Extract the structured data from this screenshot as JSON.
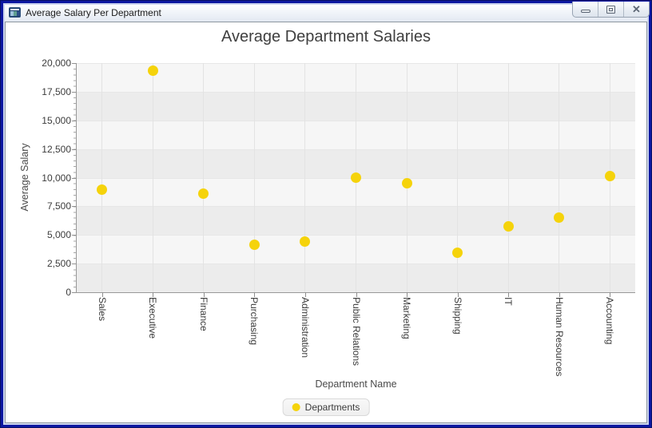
{
  "window": {
    "title": "Average Salary Per Department",
    "controls": [
      {
        "name": "minimize"
      },
      {
        "name": "maximize"
      },
      {
        "name": "close",
        "glyph": "✕"
      }
    ]
  },
  "chart_data": {
    "type": "scatter",
    "title": "Average Department Salaries",
    "xlabel": "Department Name",
    "ylabel": "Average Salary",
    "ylim": [
      0,
      20000
    ],
    "ytick_step": 2500,
    "ytick_labels": [
      "0",
      "2,500",
      "5,000",
      "7,500",
      "10,000",
      "12,500",
      "15,000",
      "17,500",
      "20,000"
    ],
    "categories": [
      "Sales",
      "Executive",
      "Finance",
      "Purchasing",
      "Administration",
      "Public Relations",
      "Marketing",
      "Shipping",
      "IT",
      "Human Resources",
      "Accounting"
    ],
    "series": [
      {
        "name": "Departments",
        "color": "#f5d30b",
        "values": [
          8955.88,
          19333.33,
          8600,
          4150,
          4400,
          10000,
          9500,
          3475.56,
          5760,
          6500,
          10154
        ]
      }
    ],
    "legend_position": "bottom",
    "grid": true,
    "alternating_row_fill": true
  },
  "colors": {
    "accent_yellow": "#f5d30b",
    "window_border": "#0c17a2",
    "plot_band_light": "#f6f6f6",
    "plot_band_dark": "#ececec"
  }
}
